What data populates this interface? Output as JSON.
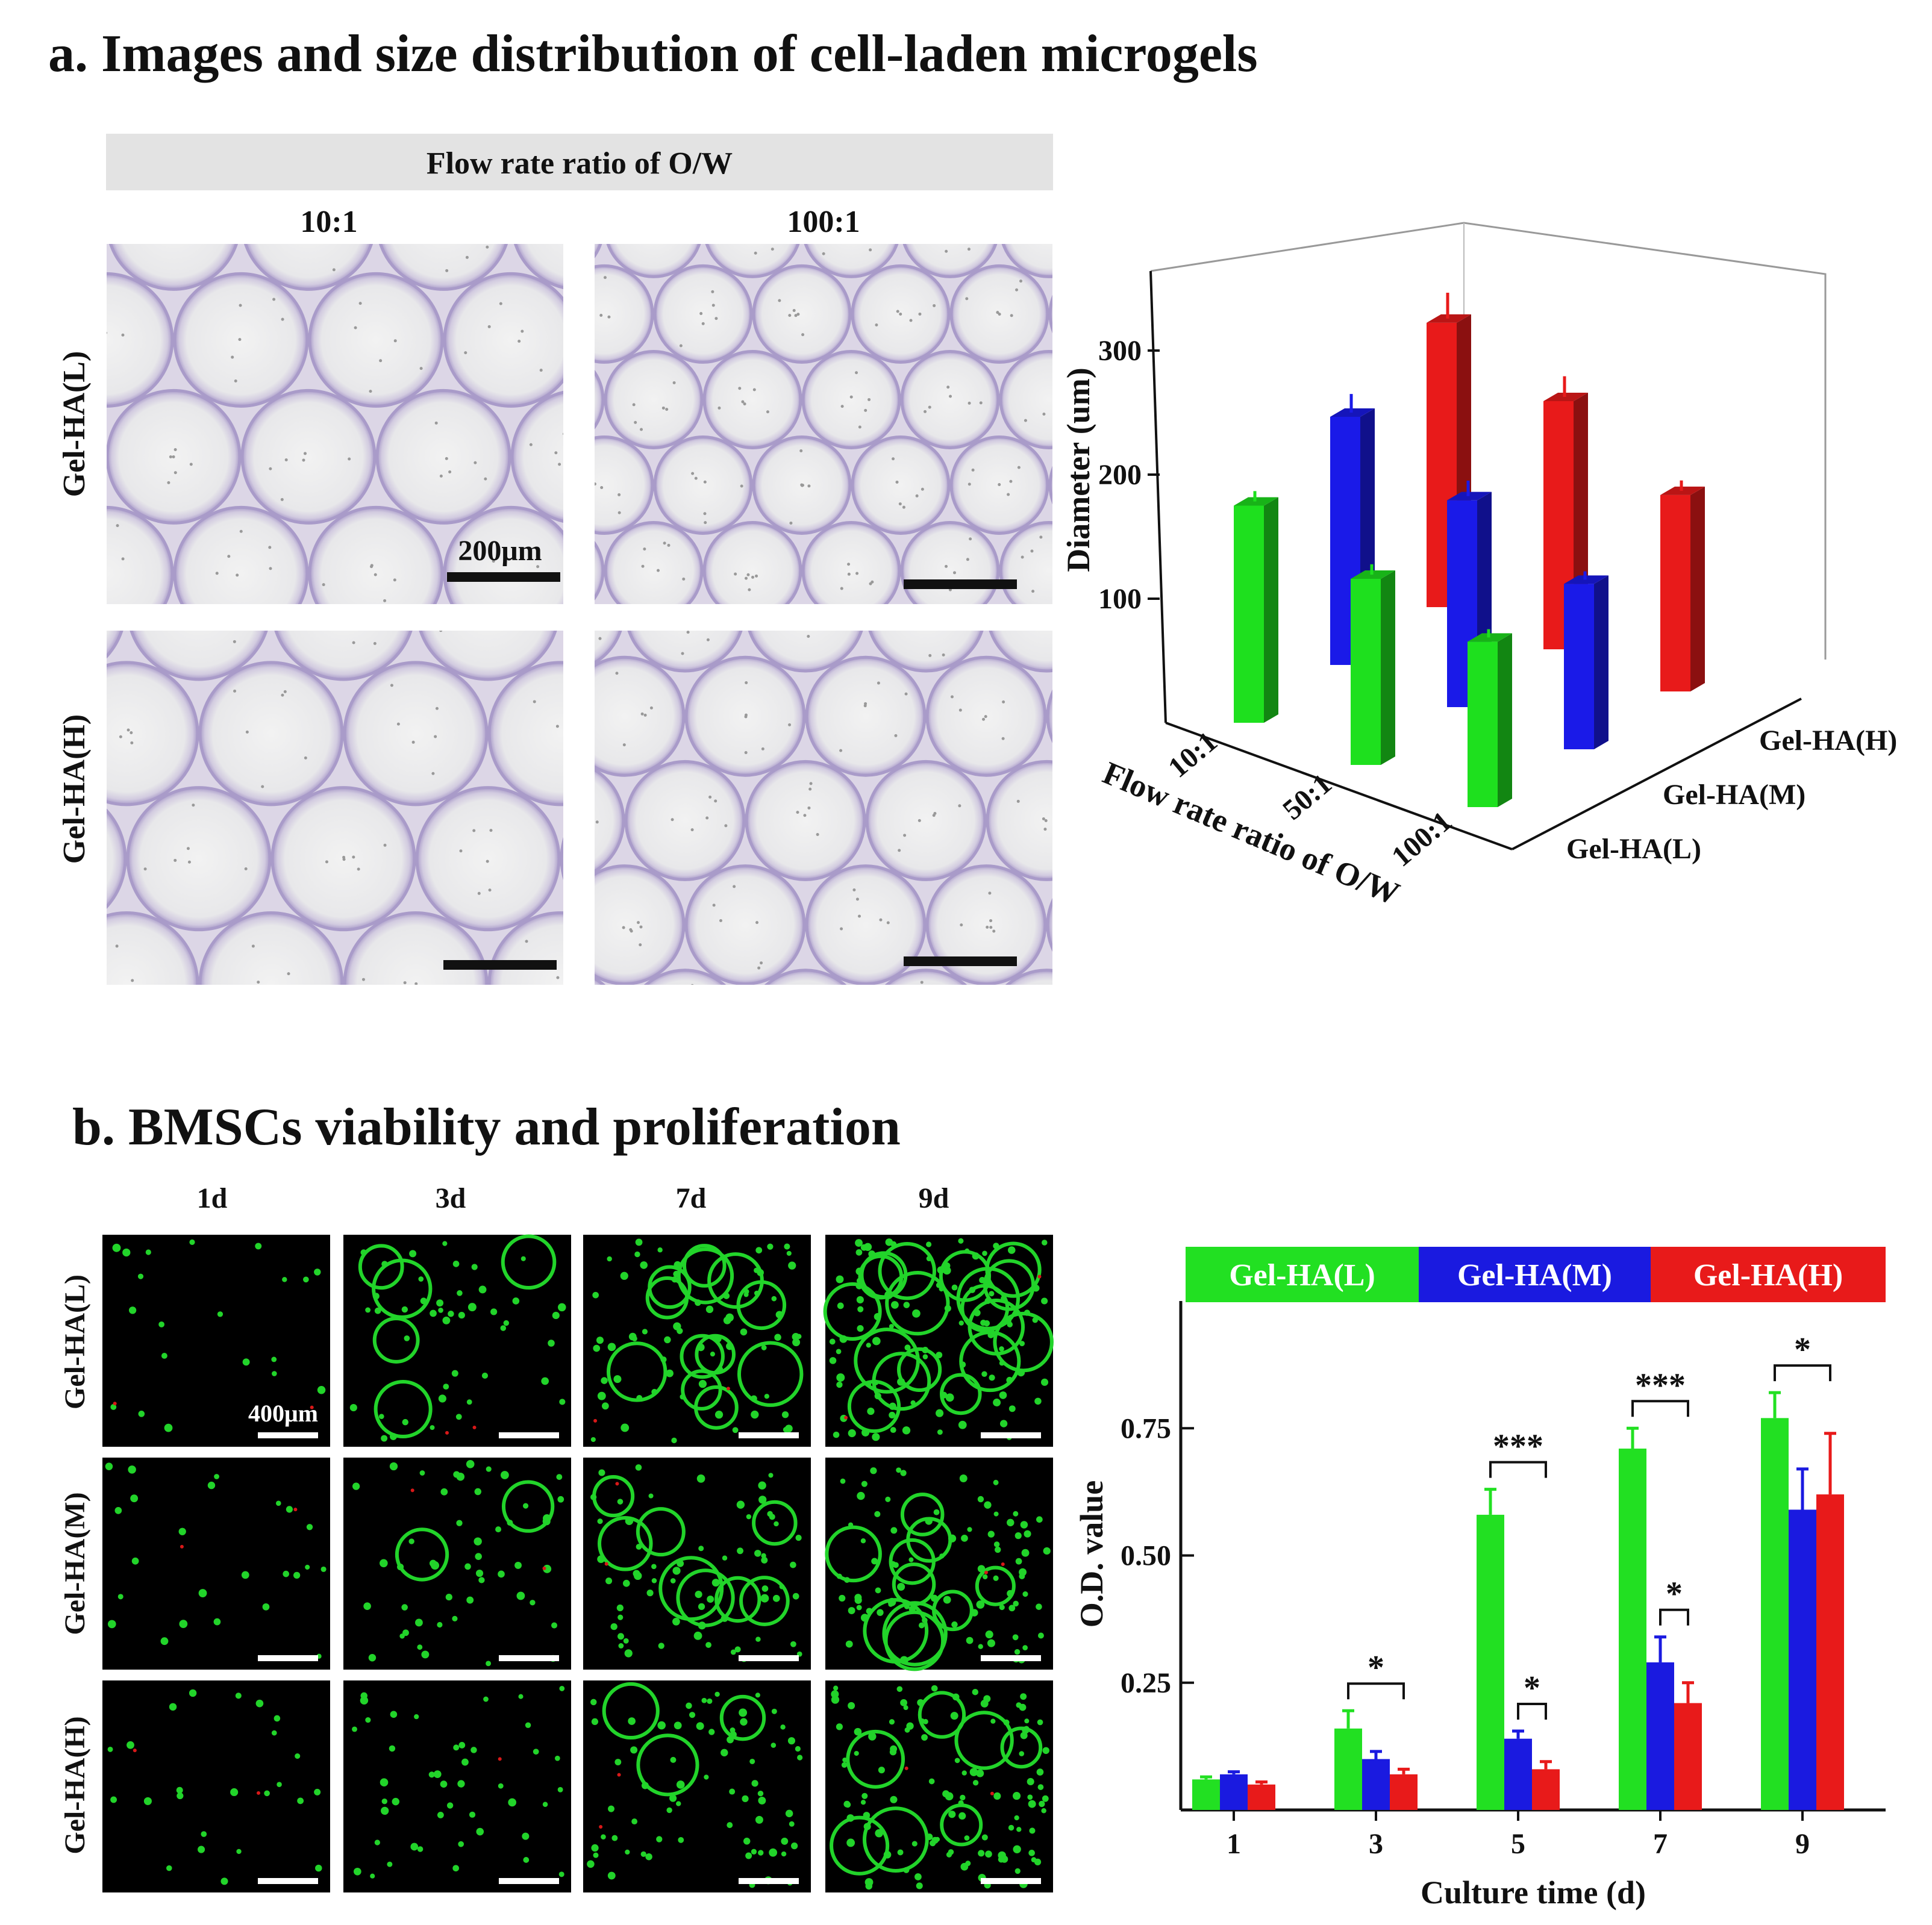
{
  "panel_a": {
    "title": "a. Images and size distribution of cell-laden microgels",
    "header": "Flow rate ratio of O/W",
    "columns": [
      "10:1",
      "100:1"
    ],
    "rows": [
      "Gel-HA(L)",
      "Gel-HA(H)"
    ],
    "scale_bar": "200μm",
    "colors": {
      "droplet_edge": "#a99bc9",
      "droplet_fill": "#ececec"
    }
  },
  "panel_b": {
    "title": "b. BMSCs viability and proliferation",
    "columns": [
      "1d",
      "3d",
      "7d",
      "9d"
    ],
    "rows": [
      "Gel-HA(L)",
      "Gel-HA(M)",
      "Gel-HA(H)"
    ],
    "scale_bar": "400μm",
    "colors": {
      "live": "#22d42a",
      "dead": "#d81818",
      "background": "#000000"
    }
  },
  "chart_data": [
    {
      "type": "bar",
      "projection": "3d",
      "ylabel": "Diameter (um)",
      "xlabel": "Flow rate ratio of O/W",
      "categories": [
        "10:1",
        "50:1",
        "100:1"
      ],
      "depth_categories": [
        "Gel-HA(L)",
        "Gel-HA(M)",
        "Gel-HA(H)"
      ],
      "z_ticks": [
        "100",
        "200",
        "300"
      ],
      "zlim": [
        0,
        300
      ],
      "series": [
        {
          "name": "Gel-HA(L)",
          "color": "#1ee01e",
          "values": [
            210,
            180,
            160
          ],
          "errors": [
            10,
            10,
            8
          ]
        },
        {
          "name": "Gel-HA(M)",
          "color": "#1a1ae8",
          "values": [
            240,
            200,
            160
          ],
          "errors": [
            18,
            15,
            8
          ]
        },
        {
          "name": "Gel-HA(H)",
          "color": "#e81a1a",
          "values": [
            275,
            240,
            190
          ],
          "errors": [
            25,
            20,
            10
          ]
        }
      ]
    },
    {
      "type": "bar",
      "ylabel": "O.D. value",
      "xlabel": "Culture time (d)",
      "categories": [
        "1",
        "3",
        "5",
        "7",
        "9"
      ],
      "y_ticks": [
        "0.25",
        "0.50",
        "0.75"
      ],
      "ylim": [
        0,
        1.0
      ],
      "legend_position": "top",
      "series": [
        {
          "name": "Gel-HA(L)",
          "color": "#22e022",
          "values": [
            0.06,
            0.16,
            0.58,
            0.71,
            0.77
          ],
          "errors": [
            0.005,
            0.035,
            0.05,
            0.04,
            0.05
          ]
        },
        {
          "name": "Gel-HA(M)",
          "color": "#1a1ae0",
          "values": [
            0.07,
            0.1,
            0.14,
            0.29,
            0.59
          ],
          "errors": [
            0.005,
            0.015,
            0.015,
            0.05,
            0.08
          ]
        },
        {
          "name": "Gel-HA(H)",
          "color": "#e81a1a",
          "values": [
            0.05,
            0.07,
            0.08,
            0.21,
            0.62
          ],
          "errors": [
            0.005,
            0.01,
            0.015,
            0.04,
            0.12
          ]
        }
      ],
      "significance": [
        {
          "between": [
            "Gel-HA(L)",
            "Gel-HA(H)"
          ],
          "at": "3",
          "label": "*"
        },
        {
          "between": [
            "Gel-HA(L)",
            "Gel-HA(H)"
          ],
          "at": "5",
          "label": "***"
        },
        {
          "between": [
            "Gel-HA(M)",
            "Gel-HA(H)"
          ],
          "at": "5",
          "label": "*"
        },
        {
          "between": [
            "Gel-HA(L)",
            "Gel-HA(H)"
          ],
          "at": "7",
          "label": "***"
        },
        {
          "between": [
            "Gel-HA(M)",
            "Gel-HA(H)"
          ],
          "at": "7",
          "label": "*"
        },
        {
          "between": [
            "Gel-HA(L)",
            "Gel-HA(H)"
          ],
          "at": "9",
          "label": "*"
        }
      ]
    }
  ]
}
